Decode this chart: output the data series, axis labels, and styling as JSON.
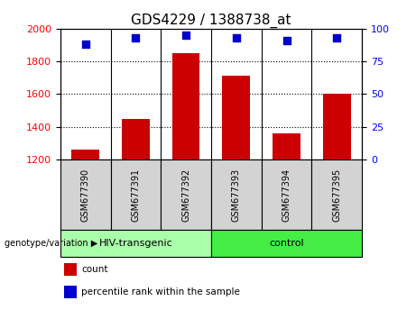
{
  "title": "GDS4229 / 1388738_at",
  "samples": [
    "GSM677390",
    "GSM677391",
    "GSM677392",
    "GSM677393",
    "GSM677394",
    "GSM677395"
  ],
  "counts": [
    1260,
    1450,
    1850,
    1710,
    1360,
    1600
  ],
  "percentiles": [
    88,
    93,
    95,
    93,
    91,
    93
  ],
  "groups": [
    {
      "label": "HIV-transgenic",
      "color": "#aaffaa",
      "start": 0,
      "end": 3
    },
    {
      "label": "control",
      "color": "#44ee44",
      "start": 3,
      "end": 6
    }
  ],
  "ylim_left": [
    1200,
    2000
  ],
  "ylim_right": [
    0,
    100
  ],
  "yticks_left": [
    1200,
    1400,
    1600,
    1800,
    2000
  ],
  "yticks_right": [
    0,
    25,
    50,
    75,
    100
  ],
  "bar_color": "#CC0000",
  "dot_color": "#0000CC",
  "bar_width": 0.55,
  "background_color": "#ffffff",
  "sample_box_color": "#d3d3d3",
  "label_genotype": "genotype/variation",
  "legend_count": "count",
  "legend_percentile": "percentile rank within the sample",
  "title_fontsize": 11,
  "tick_fontsize": 8,
  "label_fontsize": 8
}
